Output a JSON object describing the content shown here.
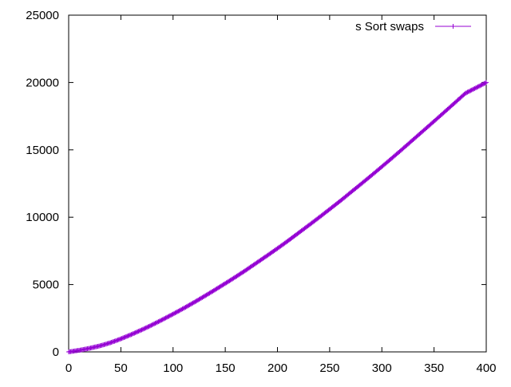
{
  "chart_data": {
    "type": "line",
    "title": "",
    "xlabel": "",
    "ylabel": "",
    "xlim": [
      0,
      400
    ],
    "ylim": [
      0,
      25000
    ],
    "x_ticks": [
      "0",
      "50",
      "100",
      "150",
      "200",
      "250",
      "300",
      "350",
      "400"
    ],
    "y_ticks": [
      "0",
      "5000",
      "10000",
      "15000",
      "20000",
      "25000"
    ],
    "grid": false,
    "legend_position": "top-right",
    "series": [
      {
        "name": "s Sort swaps",
        "color": "#9400d3",
        "marker": "plus",
        "x": [
          0,
          10,
          20,
          30,
          40,
          50,
          60,
          70,
          80,
          90,
          100,
          110,
          120,
          130,
          140,
          150,
          160,
          170,
          180,
          190,
          200,
          210,
          220,
          230,
          240,
          250,
          260,
          270,
          280,
          290,
          300,
          310,
          320,
          330,
          340,
          350,
          360,
          370,
          380,
          390,
          400
        ],
        "y": [
          0,
          120,
          270,
          450,
          680,
          970,
          1290,
          1640,
          2010,
          2400,
          2810,
          3230,
          3670,
          4130,
          4600,
          5080,
          5570,
          6080,
          6610,
          7140,
          7680,
          8240,
          8820,
          9400,
          9990,
          10590,
          11200,
          11830,
          12460,
          13100,
          13750,
          14410,
          15080,
          15760,
          16440,
          17120,
          17810,
          18500,
          19200,
          19600,
          20000
        ]
      }
    ]
  }
}
